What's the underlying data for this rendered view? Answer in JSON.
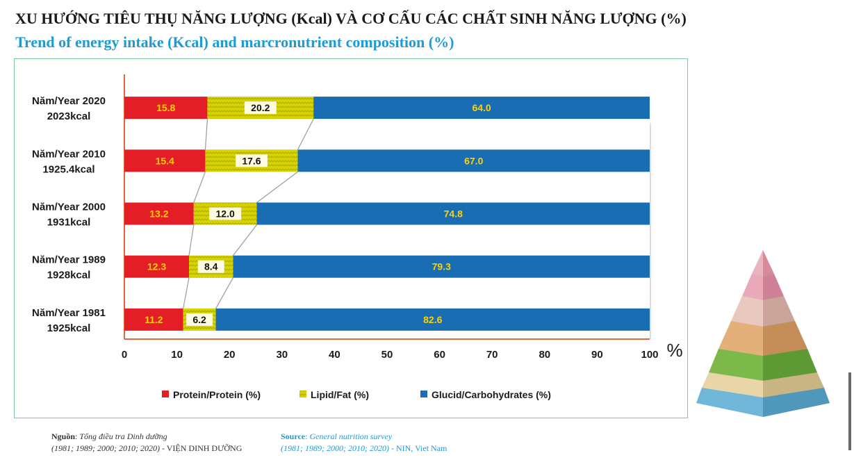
{
  "header": {
    "title_vn": "XU HƯỚNG TIÊU THỤ NĂNG LƯỢNG (Kcal) VÀ CƠ CẤU CÁC CHẤT SINH NĂNG LƯỢNG (%)",
    "title_en": "Trend of energy intake (Kcal) and marcronutrient composition (%)"
  },
  "chart_data": {
    "type": "bar",
    "orientation": "horizontal",
    "stacked": true,
    "categories": [
      [
        "Năm/Year 2020",
        "2023kcal"
      ],
      [
        "Năm/Year 2010",
        "1925.4kcal"
      ],
      [
        "Năm/Year 2000",
        "1931kcal"
      ],
      [
        "Năm/Year 1989",
        "1928kcal"
      ],
      [
        "Năm/Year 1981",
        "1925kcal"
      ]
    ],
    "series": [
      {
        "name": "Protein/Protein (%)",
        "color": "#e41e26",
        "label_color": "#ffd200",
        "pattern": "solid",
        "values": [
          15.8,
          15.4,
          13.2,
          12.3,
          11.2
        ]
      },
      {
        "name": "Lipid/Fat (%)",
        "color": "#d7d300",
        "label_color": "#111111",
        "pattern": "zigzag",
        "values": [
          20.2,
          17.6,
          12.0,
          8.4,
          6.2
        ]
      },
      {
        "name": "Glucid/Carbohydrates (%)",
        "color": "#1a6db3",
        "label_color": "#ffd200",
        "pattern": "solid",
        "values": [
          64.0,
          67.0,
          74.8,
          79.3,
          82.6
        ]
      }
    ],
    "data_labels": [
      [
        "15.8",
        "20.2",
        "64.0"
      ],
      [
        "15.4",
        "17.6",
        "67.0"
      ],
      [
        "13.2",
        "12.0",
        "74.8"
      ],
      [
        "12.3",
        "8.4",
        "79.3"
      ],
      [
        "11.2",
        "6.2",
        "82.6"
      ]
    ],
    "x_ticks": [
      "0",
      "10",
      "20",
      "30",
      "40",
      "50",
      "60",
      "70",
      "80",
      "90",
      "100"
    ],
    "xlim": [
      0,
      100
    ],
    "x_unit": "%",
    "grid": false,
    "connector_lines": true,
    "legend_position": "bottom"
  },
  "source": {
    "vn_label": "Nguồn",
    "vn_line1": "Tổng điều tra Dinh dưỡng",
    "vn_line2": "(1981; 1989; 2000; 2010; 2020)",
    "vn_org": " - VIỆN DINH DƯỠNG",
    "en_label": "Source",
    "en_line1": "General nutrition survey",
    "en_line2": "(1981; 1989; 2000; 2010; 2020)",
    "en_org": " - NIN, Viet Nam"
  },
  "decoration": {
    "image": "food-pyramid-icon"
  }
}
